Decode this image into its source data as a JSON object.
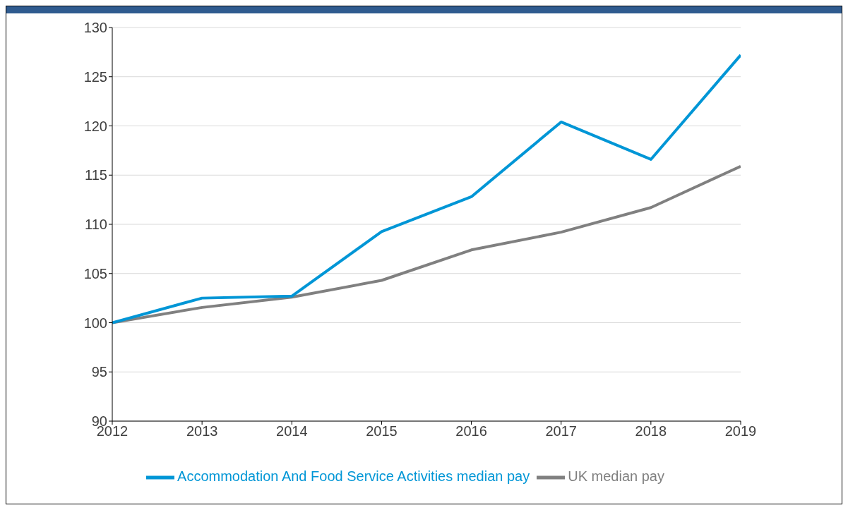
{
  "chart_data": {
    "type": "line",
    "x": [
      2012,
      2013,
      2014,
      2015,
      2016,
      2017,
      2018,
      2019
    ],
    "series": [
      {
        "name": "UK median pay",
        "color": "#808080",
        "values": [
          100,
          101.55,
          102.6,
          104.3,
          107.4,
          109.2,
          111.7,
          115.9
        ]
      },
      {
        "name": "Accommodation And Food Service Activities median pay",
        "color": "#0096d6",
        "values": [
          100,
          102.5,
          102.7,
          109.25,
          112.8,
          120.4,
          116.6,
          127.2
        ]
      }
    ],
    "xlim": [
      2012,
      2019
    ],
    "xticks": [
      2012,
      2013,
      2014,
      2015,
      2016,
      2017,
      2018,
      2019
    ],
    "ylim": [
      90,
      130
    ],
    "yticks": [
      90,
      95,
      100,
      105,
      110,
      115,
      120,
      125,
      130
    ],
    "grid": "y",
    "legend": "bottom",
    "marker": "none",
    "line_style": "solid"
  }
}
